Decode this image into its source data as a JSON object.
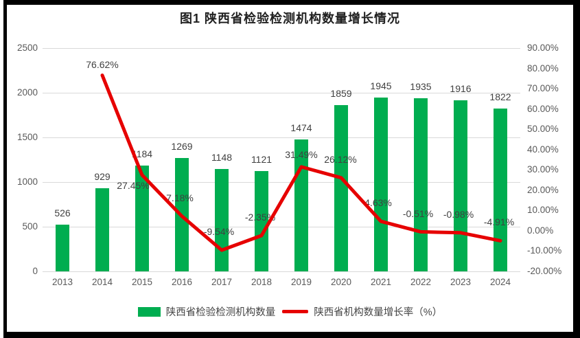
{
  "chart": {
    "title": "图1 陕西省检验检测机构数量增长情况"
  },
  "chart_data": {
    "type": "bar+line",
    "title": "图1 陕西省检验检测机构数量增长情况",
    "categories": [
      "2013",
      "2014",
      "2015",
      "2016",
      "2017",
      "2018",
      "2019",
      "2020",
      "2021",
      "2022",
      "2023",
      "2024"
    ],
    "series": [
      {
        "name": "陕西省检验检测机构数量",
        "type": "bar",
        "axis": "left",
        "values": [
          526,
          929,
          1184,
          1269,
          1148,
          1121,
          1474,
          1859,
          1945,
          1935,
          1916,
          1822
        ],
        "labels": [
          "526",
          "929",
          "1184",
          "1269",
          "1148",
          "1121",
          "1474",
          "1859",
          "1945",
          "1935",
          "1916",
          "1822"
        ]
      },
      {
        "name": "陕西省机构数量增长率（%）",
        "type": "line",
        "axis": "right",
        "points": [
          {
            "x": "2014",
            "v": 76.62,
            "label": "76.62%",
            "dx": 0,
            "dy": -16
          },
          {
            "x": "2015",
            "v": 27.45,
            "label": "27.45%",
            "dx": -13,
            "dy": 15
          },
          {
            "x": "2016",
            "v": 7.18,
            "label": "7.18%",
            "dx": -3,
            "dy": -27
          },
          {
            "x": "2017",
            "v": -9.54,
            "label": "-9.54%",
            "dx": -4,
            "dy": -27
          },
          {
            "x": "2018",
            "v": -2.35,
            "label": "-2.35%",
            "dx": -2,
            "dy": -27
          },
          {
            "x": "2019",
            "v": 31.49,
            "label": "31.49%",
            "dx": 0,
            "dy": -18
          },
          {
            "x": "2020",
            "v": 26.12,
            "label": "26.12%",
            "dx": -1,
            "dy": -27
          },
          {
            "x": "2021",
            "v": 4.63,
            "label": "4.63%",
            "dx": -4,
            "dy": -27
          },
          {
            "x": "2022",
            "v": -0.51,
            "label": "-0.51%",
            "dx": -4,
            "dy": -26
          },
          {
            "x": "2023",
            "v": -0.98,
            "label": "-0.98%",
            "dx": -3,
            "dy": -27
          },
          {
            "x": "2024",
            "v": -4.91,
            "label": "-4.91%",
            "dx": -2,
            "dy": -27
          }
        ]
      }
    ],
    "y_left": {
      "min": 0,
      "max": 2500,
      "ticks": [
        {
          "v": 2500,
          "label": "2500"
        },
        {
          "v": 2000,
          "label": "2000"
        },
        {
          "v": 1500,
          "label": "1500"
        },
        {
          "v": 1000,
          "label": "1000"
        },
        {
          "v": 500,
          "label": "500"
        },
        {
          "v": 0,
          "label": "0"
        }
      ]
    },
    "y_right": {
      "min": -20,
      "max": 90,
      "ticks": [
        {
          "v": 90,
          "label": "90.00%"
        },
        {
          "v": 80,
          "label": "80.00%"
        },
        {
          "v": 70,
          "label": "70.00%"
        },
        {
          "v": 60,
          "label": "60.00%"
        },
        {
          "v": 50,
          "label": "50.00%"
        },
        {
          "v": 40,
          "label": "40.00%"
        },
        {
          "v": 30,
          "label": "30.00%"
        },
        {
          "v": 20,
          "label": "20.00%"
        },
        {
          "v": 10,
          "label": "10.00%"
        },
        {
          "v": 0,
          "label": "0.00%"
        },
        {
          "v": -10,
          "label": "-10.00%"
        },
        {
          "v": -20,
          "label": "-20.00%"
        }
      ]
    },
    "colors": {
      "bar": "#00AD50",
      "line": "#E60000",
      "grid": "#D9D9D9",
      "axis_text": "#595959",
      "label_text": "#404040",
      "frame": "#000000"
    },
    "grid": true,
    "legend_position": "bottom"
  }
}
